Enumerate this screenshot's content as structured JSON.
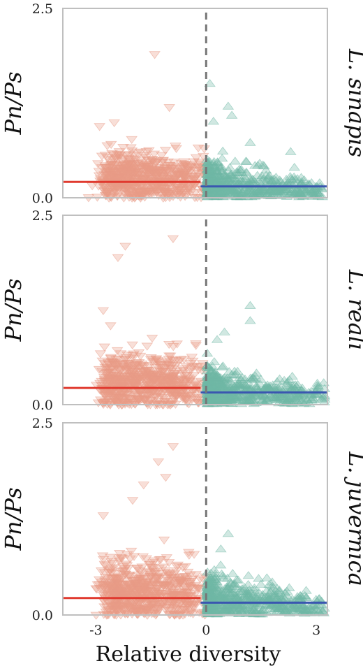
{
  "chart_data": [
    {
      "type": "scatter",
      "species": "L. sinapis",
      "ylabel": "Pn/Ps",
      "xlim": [
        -3.9,
        3.3
      ],
      "ylim": [
        0.0,
        2.5
      ],
      "y_ticks": [
        "0.0",
        "2.5"
      ],
      "divider_x": 0,
      "colors": {
        "below": "#e89a86",
        "above": "#6fb8a6",
        "below_line": "#e03a2f",
        "above_line": "#3a56b0",
        "divider": "#777777"
      },
      "below_zero": {
        "mean_line": {
          "x": [
            -3.9,
            -0.15
          ],
          "y": 0.21
        },
        "count": 620,
        "x_range": [
          -2.8,
          0
        ],
        "y_center": 0.28,
        "y_spread": 0.18
      },
      "above_zero": {
        "mean_line": {
          "x": [
            -0.15,
            3.3
          ],
          "y": 0.15
        },
        "count": 520,
        "x_range": [
          0,
          3.2
        ],
        "y_center": 0.16,
        "y_spread": 0.12
      },
      "notable_points": {
        "below": [
          [
            -1.4,
            1.9
          ],
          [
            -2.9,
            0.95
          ],
          [
            -2.5,
            1.0
          ],
          [
            -1.0,
            1.2
          ],
          [
            -2.6,
            0.02
          ],
          [
            -3.2,
            0.01
          ]
        ],
        "above": [
          [
            0.1,
            1.5
          ],
          [
            0.6,
            1.2
          ],
          [
            0.7,
            1.08
          ],
          [
            0.2,
            1.0
          ],
          [
            1.2,
            0.72
          ],
          [
            2.3,
            0.6
          ],
          [
            2.8,
            0.1
          ]
        ]
      }
    },
    {
      "type": "scatter",
      "species": "L. reali",
      "ylabel": "Pn/Ps",
      "xlim": [
        -3.9,
        3.3
      ],
      "ylim": [
        0.0,
        2.5
      ],
      "y_ticks": [
        "0.0",
        "2.5"
      ],
      "divider_x": 0,
      "colors": {
        "below": "#e89a86",
        "above": "#6fb8a6",
        "below_line": "#e03a2f",
        "above_line": "#3a56b0",
        "divider": "#777777"
      },
      "below_zero": {
        "mean_line": {
          "x": [
            -3.9,
            -0.15
          ],
          "y": 0.22
        },
        "count": 620,
        "x_range": [
          -2.8,
          0
        ],
        "y_center": 0.3,
        "y_spread": 0.2
      },
      "above_zero": {
        "mean_line": {
          "x": [
            -0.15,
            3.3
          ],
          "y": 0.16
        },
        "count": 520,
        "x_range": [
          0,
          3.2
        ],
        "y_center": 0.17,
        "y_spread": 0.13
      },
      "notable_points": {
        "below": [
          [
            -2.2,
            2.1
          ],
          [
            -0.9,
            2.2
          ],
          [
            -2.4,
            1.95
          ],
          [
            -2.8,
            1.25
          ],
          [
            -2.6,
            1.05
          ]
        ],
        "above": [
          [
            0.5,
            0.95
          ],
          [
            0.3,
            0.85
          ],
          [
            1.2,
            1.3
          ],
          [
            1.2,
            1.1
          ],
          [
            2.0,
            0.33
          ],
          [
            3.2,
            0.28
          ],
          [
            2.4,
            0.2
          ]
        ]
      }
    },
    {
      "type": "scatter",
      "species": "L. juvernica",
      "ylabel": "Pn/Ps",
      "xlim": [
        -3.9,
        3.3
      ],
      "ylim": [
        0.0,
        2.5
      ],
      "y_ticks": [
        "0.0",
        "2.5"
      ],
      "divider_x": 0,
      "x_ticks": [
        "-3",
        "0",
        "3"
      ],
      "xlabel": "Relative diversity",
      "colors": {
        "below": "#e89a86",
        "above": "#6fb8a6",
        "below_line": "#e03a2f",
        "above_line": "#3a56b0",
        "divider": "#777777"
      },
      "below_zero": {
        "mean_line": {
          "x": [
            -3.9,
            -0.15
          ],
          "y": 0.22
        },
        "count": 620,
        "x_range": [
          -2.8,
          0
        ],
        "y_center": 0.3,
        "y_spread": 0.21
      },
      "above_zero": {
        "mean_line": {
          "x": [
            -0.15,
            3.3
          ],
          "y": 0.16
        },
        "count": 520,
        "x_range": [
          0,
          3.2
        ],
        "y_center": 0.18,
        "y_spread": 0.14
      },
      "notable_points": {
        "below": [
          [
            -0.9,
            2.2
          ],
          [
            -1.3,
            2.0
          ],
          [
            -1.1,
            1.8
          ],
          [
            -1.7,
            1.7
          ],
          [
            -2.0,
            1.5
          ],
          [
            -2.8,
            1.3
          ]
        ],
        "above": [
          [
            0.6,
            1.05
          ],
          [
            0.4,
            0.85
          ],
          [
            1.8,
            0.42
          ],
          [
            2.2,
            0.3
          ]
        ]
      }
    }
  ]
}
